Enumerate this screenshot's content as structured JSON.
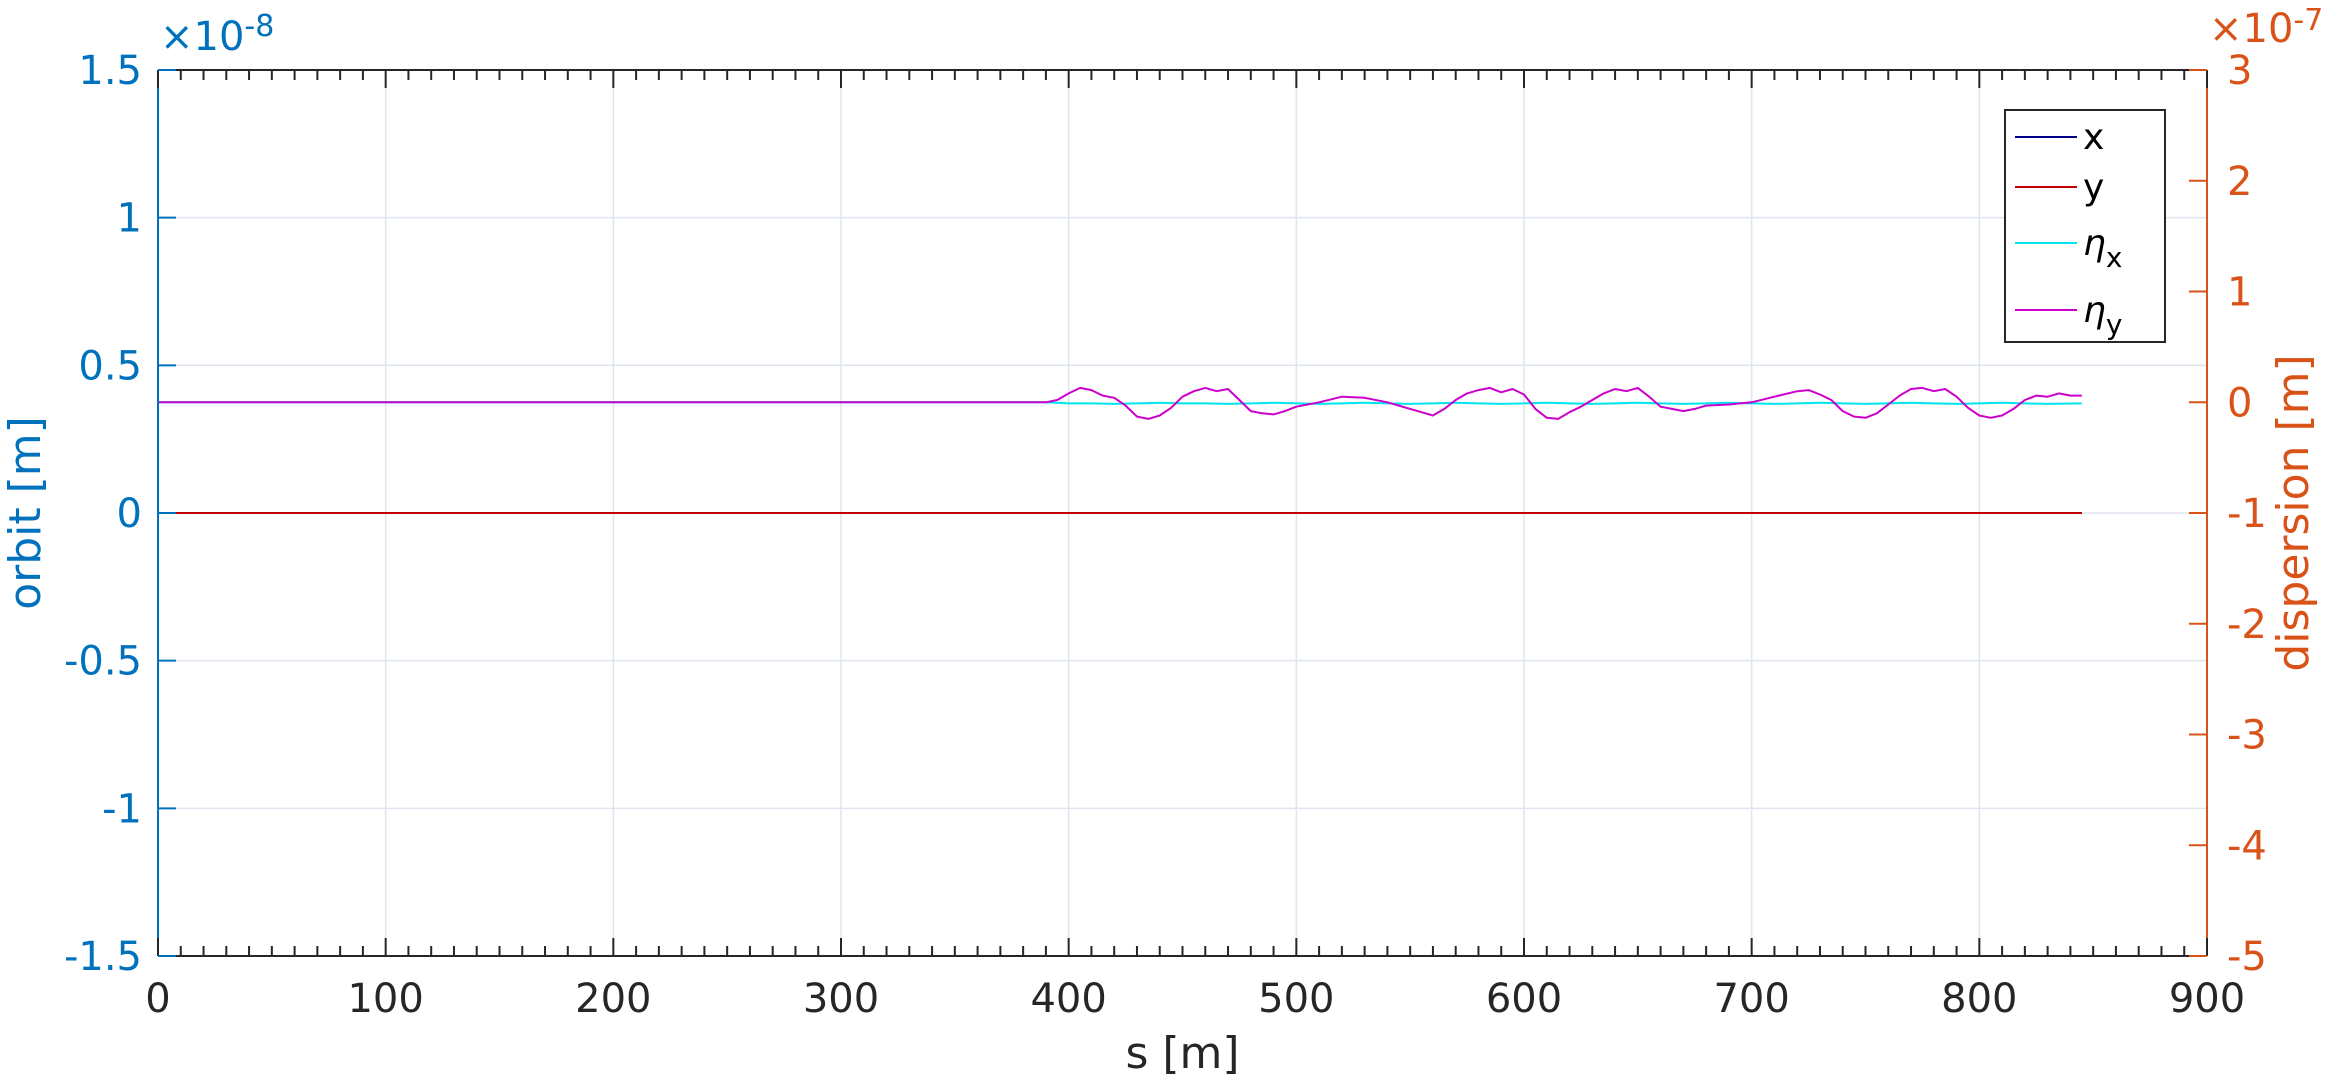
{
  "chart_data": {
    "type": "line",
    "xlabel": "s [m]",
    "ylabel_left": "orbit [m]",
    "ylabel_right": "dispersion [m]",
    "xlim": [
      0,
      900
    ],
    "xticks": [
      0,
      100,
      200,
      300,
      400,
      500,
      600,
      700,
      800,
      900
    ],
    "xtick_labels": [
      "0",
      "100",
      "200",
      "300",
      "400",
      "500",
      "600",
      "700",
      "800",
      "900"
    ],
    "ylim_left": [
      -1.5,
      1.5
    ],
    "yticks_left": [
      -1.5,
      -1,
      -0.5,
      0,
      0.5,
      1,
      1.5
    ],
    "ytick_labels_left": [
      "-1.5",
      "-1",
      "-0.5",
      "0",
      "0.5",
      "1",
      "1.5"
    ],
    "left_exponent_base": "×10",
    "left_exponent_power": "-8",
    "ylim_right": [
      -5,
      3
    ],
    "yticks_right": [
      -5,
      -4,
      -3,
      -2,
      -1,
      0,
      1,
      2,
      3
    ],
    "ytick_labels_right": [
      "-5",
      "-4",
      "-3",
      "-2",
      "-1",
      "0",
      "1",
      "2",
      "3"
    ],
    "right_exponent_base": "×10",
    "right_exponent_power": "-7",
    "grid": true,
    "legend_position": "top-right",
    "colors": {
      "left_axis": "#0072BD",
      "right_axis": "#D95319",
      "grid": "#dfe5ee",
      "frame": "#262626"
    },
    "series": [
      {
        "name": "x",
        "axis": "left",
        "color": "#00008B",
        "legend_main": "x",
        "legend_sub": "",
        "s": [
          0,
          845
        ],
        "values": [
          0,
          0
        ]
      },
      {
        "name": "y",
        "axis": "left",
        "color": "#C00000",
        "legend_main": "y",
        "legend_sub": "",
        "s": [
          0,
          845
        ],
        "values": [
          0,
          0
        ]
      },
      {
        "name": "eta_x",
        "axis": "right",
        "color": "#00E5EE",
        "legend_main": "η",
        "legend_sub": "x",
        "s": [
          0,
          390,
          400,
          410,
          420,
          430,
          440,
          450,
          460,
          470,
          480,
          490,
          500,
          510,
          520,
          530,
          540,
          550,
          560,
          570,
          580,
          590,
          600,
          610,
          620,
          630,
          640,
          650,
          660,
          670,
          680,
          690,
          700,
          710,
          720,
          730,
          740,
          750,
          760,
          770,
          780,
          790,
          800,
          810,
          820,
          830,
          845
        ],
        "values": [
          0,
          0,
          -0.01,
          -0.01,
          -0.015,
          -0.01,
          -0.005,
          -0.01,
          -0.01,
          -0.015,
          -0.01,
          -0.005,
          -0.01,
          -0.015,
          -0.01,
          -0.005,
          -0.01,
          -0.015,
          -0.01,
          -0.005,
          -0.01,
          -0.015,
          -0.01,
          -0.005,
          -0.01,
          -0.015,
          -0.01,
          -0.005,
          -0.01,
          -0.015,
          -0.01,
          -0.005,
          -0.01,
          -0.015,
          -0.01,
          -0.005,
          -0.01,
          -0.015,
          -0.01,
          -0.005,
          -0.01,
          -0.015,
          -0.01,
          -0.005,
          -0.01,
          -0.015,
          -0.01
        ]
      },
      {
        "name": "eta_y",
        "axis": "right",
        "color": "#CC00CC",
        "legend_main": "η",
        "legend_sub": "y",
        "s": [
          0,
          390,
          395,
          400,
          405,
          410,
          415,
          420,
          425,
          430,
          435,
          440,
          445,
          450,
          455,
          460,
          465,
          470,
          475,
          480,
          485,
          490,
          495,
          500,
          510,
          520,
          530,
          540,
          550,
          555,
          560,
          565,
          570,
          575,
          580,
          585,
          590,
          595,
          600,
          605,
          610,
          615,
          620,
          625,
          630,
          635,
          640,
          645,
          650,
          655,
          660,
          665,
          670,
          675,
          680,
          690,
          700,
          710,
          720,
          725,
          730,
          735,
          740,
          745,
          750,
          755,
          760,
          765,
          770,
          775,
          780,
          785,
          790,
          795,
          800,
          805,
          810,
          815,
          820,
          825,
          830,
          835,
          840,
          845
        ],
        "values": [
          0,
          0,
          0.02,
          0.08,
          0.13,
          0.11,
          0.06,
          0.04,
          -0.03,
          -0.13,
          -0.15,
          -0.12,
          -0.05,
          0.05,
          0.1,
          0.13,
          0.1,
          0.12,
          0.02,
          -0.08,
          -0.1,
          -0.11,
          -0.08,
          -0.04,
          0.0,
          0.05,
          0.04,
          0.0,
          -0.06,
          -0.09,
          -0.12,
          -0.06,
          0.02,
          0.08,
          0.11,
          0.13,
          0.09,
          0.12,
          0.07,
          -0.06,
          -0.14,
          -0.15,
          -0.09,
          -0.04,
          0.02,
          0.08,
          0.12,
          0.1,
          0.13,
          0.05,
          -0.04,
          -0.06,
          -0.08,
          -0.06,
          -0.03,
          -0.02,
          0.0,
          0.05,
          0.1,
          0.11,
          0.07,
          0.02,
          -0.08,
          -0.13,
          -0.14,
          -0.1,
          -0.02,
          0.06,
          0.12,
          0.13,
          0.1,
          0.12,
          0.05,
          -0.05,
          -0.12,
          -0.14,
          -0.12,
          -0.06,
          0.02,
          0.06,
          0.05,
          0.08,
          0.06,
          0.06
        ]
      }
    ]
  }
}
